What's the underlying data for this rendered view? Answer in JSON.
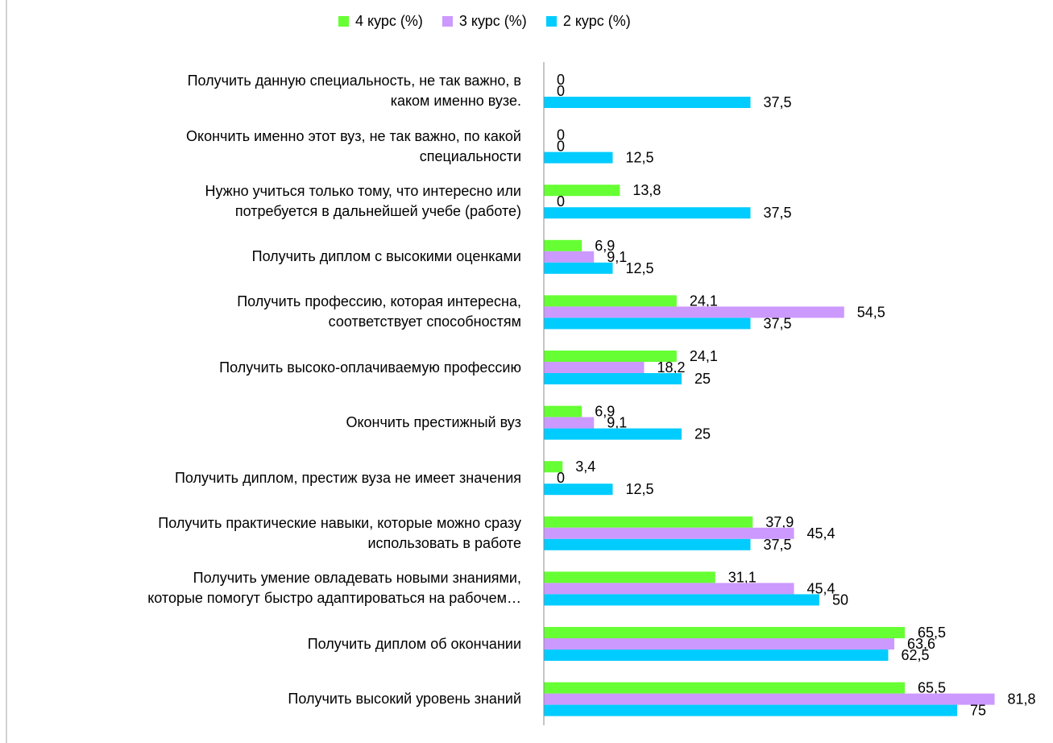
{
  "chart_data": {
    "type": "bar",
    "orientation": "horizontal",
    "legend_position": "top",
    "grid": false,
    "xlim": [
      0,
      85
    ],
    "series": [
      {
        "name": "4 курс (%)",
        "color": "#66FF33",
        "values": [
          0,
          0,
          13.8,
          6.9,
          24.1,
          24.1,
          6.9,
          3.4,
          37.9,
          31.1,
          65.5,
          65.5
        ],
        "labels": [
          "0",
          "0",
          "13,8",
          "6,9",
          "24,1",
          "24,1",
          "6,9",
          "3,4",
          "37,9",
          "31,1",
          "65,5",
          "65,5"
        ]
      },
      {
        "name": "3 курс (%)",
        "color": "#CC99FF",
        "values": [
          0,
          0,
          0,
          9.1,
          54.5,
          18.2,
          9.1,
          0,
          45.4,
          45.4,
          63.6,
          81.8
        ],
        "labels": [
          "0",
          "0",
          "0",
          "9,1",
          "54,5",
          "18,2",
          "9,1",
          "0",
          "45,4",
          "45,4",
          "63,6",
          "81,8"
        ]
      },
      {
        "name": "2 курс (%)",
        "color": "#00CCFF",
        "values": [
          37.5,
          12.5,
          37.5,
          12.5,
          37.5,
          25,
          25,
          12.5,
          37.5,
          50,
          62.5,
          75
        ],
        "labels": [
          "37,5",
          "12,5",
          "37,5",
          "12,5",
          "37,5",
          "25",
          "25",
          "12,5",
          "37,5",
          "50",
          "62,5",
          "75"
        ]
      }
    ],
    "categories": [
      "Получить данную специальность, не так важно, в\nкаком именно вузе.",
      "Окончить именно этот вуз, не так важно, по какой\nспециальности",
      "Нужно учиться только тому, что интересно или\nпотребуется в дальнейшей учебе (работе)",
      "Получить диплом с высокими оценками",
      "Получить профессию, которая интересна,\nсоответствует способностям",
      "Получить высоко-оплачиваемую профессию",
      "Окончить престижный вуз",
      "Получить диплом, престиж вуза не имеет значения",
      "Получить практические навыки, которые можно сразу\nиспользовать в работе",
      "Получить умение овладевать новыми знаниями,\nкоторые помогут быстро адаптироваться на рабочем…",
      "Получить диплом об окончании",
      "Получить высокий уровень знаний"
    ]
  }
}
